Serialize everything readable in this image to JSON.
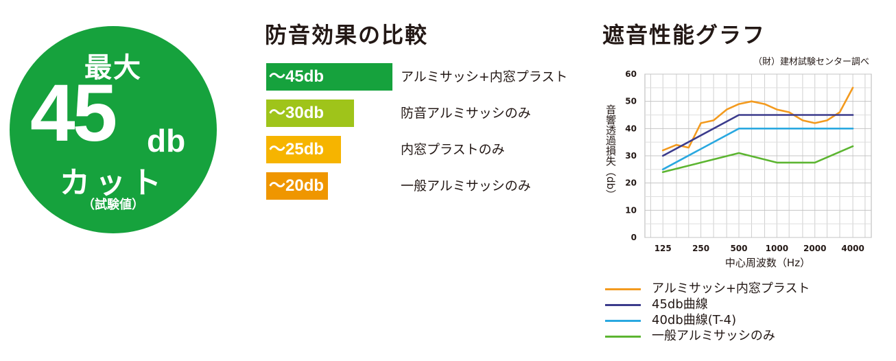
{
  "badge": {
    "top": "最大",
    "number": "45",
    "unit": "db",
    "cut": "カット",
    "note": "（試験値）",
    "color": "#16a23d"
  },
  "comparison": {
    "title": "防音効果の比較",
    "rows": [
      {
        "value_label": "～45db",
        "db": 45,
        "label": "アルミサッシ+内窓プラスト",
        "color": "#16a23d"
      },
      {
        "value_label": "～30db",
        "db": 30,
        "label": "防音アルミサッシのみ",
        "color": "#9fc41a"
      },
      {
        "value_label": "～25db",
        "db": 25,
        "label": "内窓プラストのみ",
        "color": "#f6b400"
      },
      {
        "value_label": "～20db",
        "db": 20,
        "label": "一般アルミサッシのみ",
        "color": "#ef9600"
      }
    ]
  },
  "chart_data": {
    "type": "line",
    "title": "遮音性能グラフ",
    "source": "（財）建材試験センター調べ",
    "xlabel": "中心周波数（Hz）",
    "ylabel": "音響透過損失（db）",
    "x_ticks": [
      "125",
      "250",
      "500",
      "1000",
      "2000",
      "4000"
    ],
    "ylim": [
      0,
      60
    ],
    "y_ticks": [
      "0",
      "10",
      "20",
      "30",
      "40",
      "50",
      "60"
    ],
    "x_scale": "log",
    "grid": true,
    "legend_position": "bottom",
    "series": [
      {
        "name": "アルミサッシ+内窓プラスト",
        "color": "#f39a1e",
        "x": [
          125,
          160,
          200,
          250,
          315,
          400,
          500,
          630,
          800,
          1000,
          1250,
          1600,
          2000,
          2500,
          3150,
          4000
        ],
        "y": [
          32,
          34,
          33,
          42,
          43,
          47,
          49,
          50,
          49,
          47,
          46,
          43,
          42,
          43,
          46,
          55
        ]
      },
      {
        "name": "45db曲線",
        "color": "#3b3b8c",
        "x": [
          125,
          500,
          4000
        ],
        "y": [
          30,
          45,
          45
        ]
      },
      {
        "name": "40db曲線(T-4)",
        "color": "#29a8e0",
        "x": [
          125,
          500,
          4000
        ],
        "y": [
          25,
          40,
          40
        ]
      },
      {
        "name": "一般アルミサッシのみ",
        "color": "#5cb531",
        "x": [
          125,
          250,
          500,
          1000,
          2000,
          4000
        ],
        "y": [
          24,
          27.5,
          31,
          27.5,
          27.5,
          33.5
        ]
      }
    ]
  }
}
